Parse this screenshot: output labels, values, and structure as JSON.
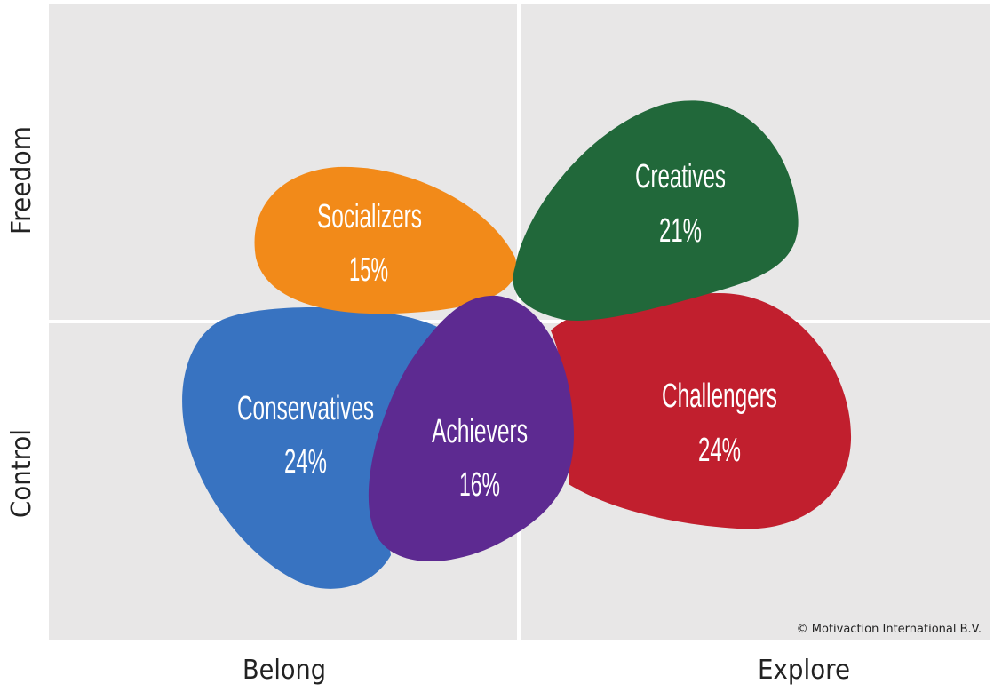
{
  "axes": {
    "top": "Freedom",
    "bottom": "Control",
    "left": "Belong",
    "right": "Explore"
  },
  "copyright": "© Motivaction International B.V.",
  "colors": {
    "quadrant_bg": "#e8e7e7",
    "divider": "#ffffff"
  },
  "segments": [
    {
      "key": "conservatives",
      "name": "Conservatives",
      "pct": "24%",
      "color": "#3873c1"
    },
    {
      "key": "socializers",
      "name": "Socializers",
      "pct": "15%",
      "color": "#f28a19"
    },
    {
      "key": "challengers",
      "name": "Challengers",
      "pct": "24%",
      "color": "#c11f2e"
    },
    {
      "key": "creatives",
      "name": "Creatives",
      "pct": "21%",
      "color": "#21683a"
    },
    {
      "key": "achievers",
      "name": "Achievers",
      "pct": "16%",
      "color": "#5d2a91"
    }
  ]
}
